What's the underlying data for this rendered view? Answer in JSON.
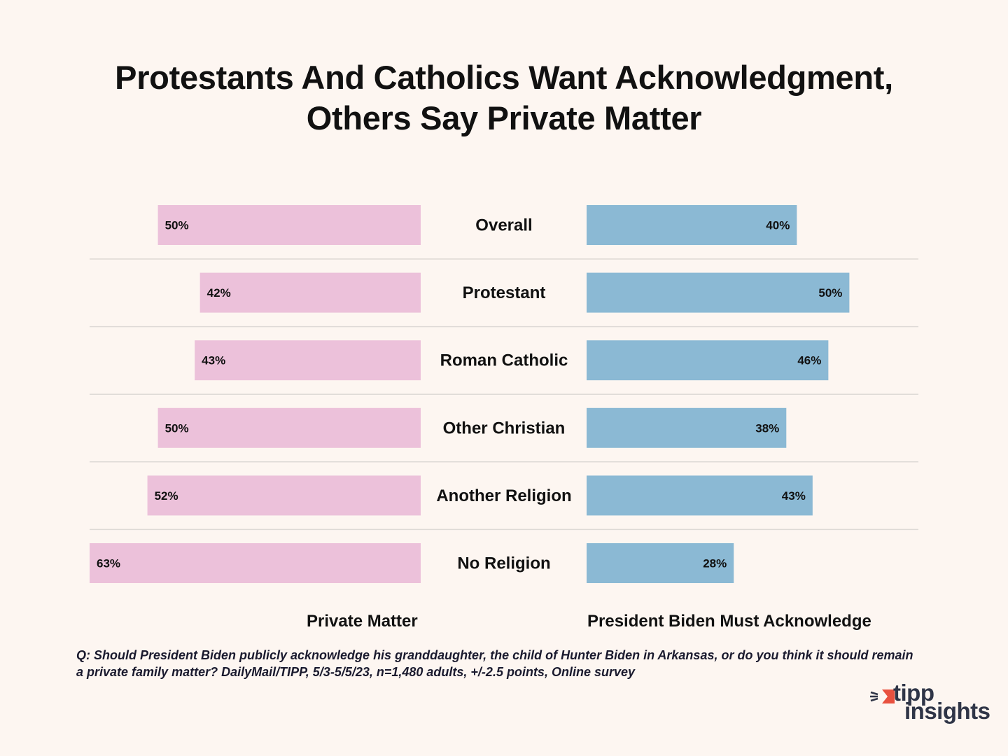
{
  "chart_data": {
    "type": "bar",
    "orientation": "horizontal-diverging",
    "title": [
      "Protestants And Catholics Want Acknowledgment,",
      "Others Say Private Matter"
    ],
    "categories": [
      "Overall",
      "Protestant",
      "Roman Catholic",
      "Other Christian",
      "Another Religion",
      "No Religion"
    ],
    "series": [
      {
        "name": "Private Matter",
        "color": "#ecc1da",
        "direction": "left",
        "values": [
          50,
          42,
          43,
          50,
          52,
          63
        ]
      },
      {
        "name": "President Biden Must Acknowledge",
        "color": "#8bb9d4",
        "direction": "right",
        "values": [
          40,
          50,
          46,
          38,
          43,
          28
        ]
      }
    ],
    "value_suffix": "%",
    "xlim": [
      0,
      63
    ],
    "grid": false,
    "separators": true
  },
  "footnote": "Q: Should President Biden publicly acknowledge his  granddaughter, the child of Hunter Biden in Arkansas, or do you think it  should remain a private family matter? DailyMail/TIPP, 5/3-5/5/23, n=1,480 adults, +/-2.5 points, Online survey",
  "logo": {
    "line1": "tipp",
    "line2": "insights",
    "accent": "#e8513f",
    "text_color": "#2f3547"
  }
}
